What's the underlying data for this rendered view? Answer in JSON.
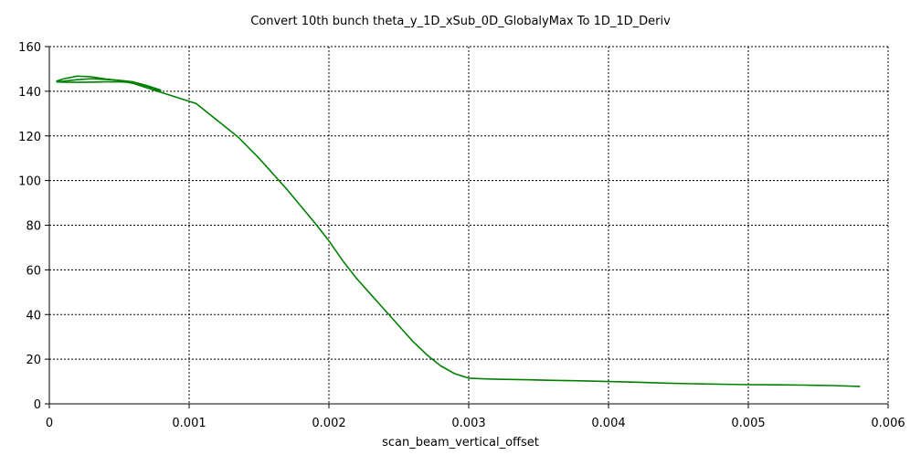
{
  "chart_data": {
    "type": "line",
    "title": "Convert 10th bunch theta_y_1D_xSub_0D_GlobalyMax To 1D_1D_Deriv",
    "xlabel": "scan_beam_vertical_offset",
    "ylabel": "",
    "xlim": [
      0,
      0.006
    ],
    "ylim": [
      0,
      160
    ],
    "xticks": [
      0,
      0.001,
      0.002,
      0.003,
      0.004,
      0.005,
      0.006
    ],
    "xtick_labels": [
      "0",
      "0.001",
      "0.002",
      "0.003",
      "0.004",
      "0.005",
      "0.006"
    ],
    "yticks": [
      0,
      20,
      40,
      60,
      80,
      100,
      120,
      140,
      160
    ],
    "ytick_labels": [
      "0",
      "20",
      "40",
      "60",
      "80",
      "100",
      "120",
      "140",
      "160"
    ],
    "grid": true,
    "series": [
      {
        "color": "#008000",
        "x": [
          5e-05,
          0.0001,
          0.0002,
          0.0003,
          0.0004,
          0.0005,
          0.0006,
          0.0007,
          0.0008,
          0.0009,
          0.001,
          0.00105,
          0.0012,
          0.00135,
          0.0015,
          0.0017,
          0.0019,
          0.002,
          0.0021,
          0.0022,
          0.0023,
          0.0024,
          0.0025,
          0.0026,
          0.0027,
          0.0028,
          0.0029,
          0.003,
          0.0031,
          0.0032,
          0.0034,
          0.0036,
          0.0038,
          0.004,
          0.0042,
          0.0044,
          0.0046,
          0.0048,
          0.005,
          0.0052,
          0.0054,
          0.0056,
          0.0058
        ],
        "y": [
          144.5,
          145.5,
          146.8,
          146.5,
          145.5,
          144.8,
          143.5,
          141.5,
          139.5,
          137.5,
          135.5,
          134.5,
          127,
          119.5,
          110,
          96,
          81,
          73,
          64,
          56,
          49,
          42,
          35,
          28,
          22,
          17,
          13.5,
          11.5,
          11.2,
          11,
          10.8,
          10.5,
          10.3,
          10,
          9.7,
          9.3,
          9,
          8.8,
          8.6,
          8.5,
          8.4,
          8.2,
          7.8
        ]
      },
      {
        "color": "#008000",
        "x": [
          5e-05,
          0.0001,
          0.0002,
          0.0003,
          0.0004,
          0.0005,
          0.0006,
          0.0007,
          0.0008
        ],
        "y": [
          144.3,
          144.5,
          145.2,
          145.6,
          145.3,
          144.9,
          144.2,
          142.5,
          140.5
        ]
      },
      {
        "color": "#008000",
        "x": [
          5e-05,
          0.0001,
          0.0002,
          0.0003,
          0.0004,
          0.0005,
          0.0006,
          0.0007,
          0.0008
        ],
        "y": [
          144.2,
          144.1,
          144.0,
          144.1,
          144.2,
          144.2,
          143.9,
          142.2,
          140.0
        ]
      }
    ]
  }
}
